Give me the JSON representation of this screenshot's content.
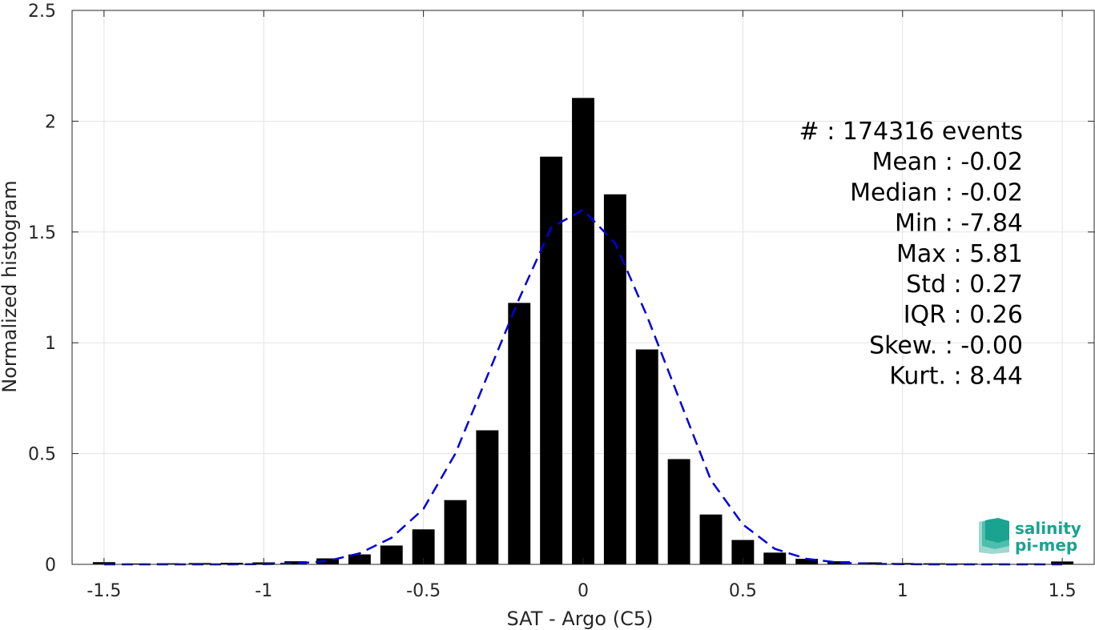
{
  "chart_data": {
    "type": "bar",
    "xlabel": "SAT - Argo (C5)",
    "ylabel": "Normalized histogram",
    "xlim": [
      -1.6,
      1.6
    ],
    "ylim": [
      0,
      2.5
    ],
    "xticks": [
      -1.5,
      -1,
      -0.5,
      0,
      0.5,
      1,
      1.5
    ],
    "xtick_labels": [
      "-1.5",
      "-1",
      "-0.5",
      "0",
      "0.5",
      "1",
      "1.5"
    ],
    "yticks": [
      0,
      0.5,
      1,
      1.5,
      2,
      2.5
    ],
    "ytick_labels": [
      "0",
      "0.5",
      "1",
      "1.5",
      "2",
      "2.5"
    ],
    "grid": true,
    "bar_width": 0.07,
    "bars": {
      "x": [
        -1.5,
        -1.4,
        -1.3,
        -1.2,
        -1.1,
        -1.0,
        -0.9,
        -0.8,
        -0.7,
        -0.6,
        -0.5,
        -0.4,
        -0.3,
        -0.2,
        -0.1,
        0.0,
        0.1,
        0.2,
        0.3,
        0.4,
        0.5,
        0.6,
        0.7,
        0.8,
        0.9,
        1.0,
        1.1,
        1.2,
        1.3,
        1.4,
        1.5
      ],
      "values": [
        0.01,
        0.004,
        0.005,
        0.006,
        0.007,
        0.009,
        0.014,
        0.027,
        0.045,
        0.085,
        0.158,
        0.29,
        0.605,
        1.18,
        1.84,
        2.105,
        1.67,
        0.97,
        0.475,
        0.225,
        0.11,
        0.053,
        0.025,
        0.014,
        0.009,
        0.006,
        0.005,
        0.004,
        0.004,
        0.004,
        0.013
      ],
      "color": "#000000"
    },
    "fit": {
      "style": "dashed",
      "color": "#0000dd",
      "x": [
        -1.5,
        -1.4,
        -1.3,
        -1.2,
        -1.1,
        -1.0,
        -0.9,
        -0.8,
        -0.7,
        -0.6,
        -0.5,
        -0.4,
        -0.3,
        -0.2,
        -0.1,
        0.0,
        0.1,
        0.2,
        0.3,
        0.4,
        0.5,
        0.6,
        0.7,
        0.8,
        0.9,
        1.0,
        1.1,
        1.2,
        1.3,
        1.4,
        1.5
      ],
      "y": [
        0.0,
        0.0,
        0.0,
        0.0,
        0.0,
        0.001,
        0.004,
        0.015,
        0.05,
        0.12,
        0.25,
        0.5,
        0.85,
        1.2,
        1.52,
        1.6,
        1.45,
        1.12,
        0.75,
        0.38,
        0.18,
        0.07,
        0.025,
        0.008,
        0.002,
        0.001,
        0.0,
        0.0,
        0.0,
        0.0,
        0.0
      ]
    },
    "stats": [
      {
        "label": "#",
        "sep": " : ",
        "value": "174316 events"
      },
      {
        "label": "Mean",
        "sep": " : ",
        "value": "-0.02"
      },
      {
        "label": "Median",
        "sep": " : ",
        "value": "-0.02"
      },
      {
        "label": "Min",
        "sep": " : ",
        "value": "-7.84"
      },
      {
        "label": "Max",
        "sep": " : ",
        "value": "5.81"
      },
      {
        "label": "Std",
        "sep": " : ",
        "value": "0.27"
      },
      {
        "label": "IQR",
        "sep": " : ",
        "value": "0.26"
      },
      {
        "label": "Skew.",
        "sep": " : ",
        "value": "-0.00"
      },
      {
        "label": "Kurt.",
        "sep": " : ",
        "value": "8.44"
      }
    ]
  },
  "logo": {
    "line1": "salinity",
    "line2": "pi-mep",
    "color": "#1aa391",
    "icon": "salinity-layers-logo"
  }
}
